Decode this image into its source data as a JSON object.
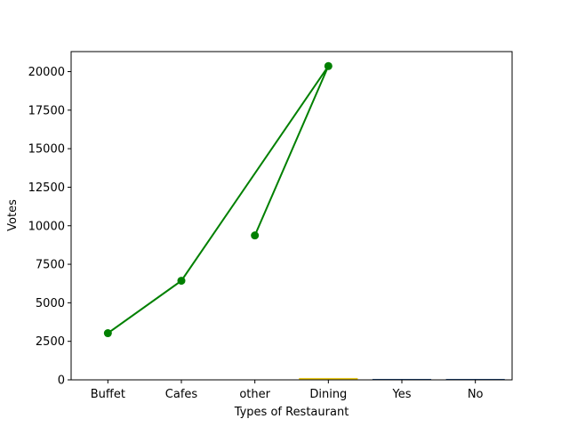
{
  "chart_data": {
    "type": "line",
    "categories": [
      "Buffet",
      "Cafes",
      "other",
      "Dining",
      "Yes",
      "No"
    ],
    "xlabel": "Types of Restaurant",
    "ylabel": "Votes",
    "ylim": [
      0,
      21300
    ],
    "yticks": [
      0,
      2500,
      5000,
      7500,
      10000,
      12500,
      15000,
      17500,
      20000
    ],
    "ytick_labels": [
      "0",
      "2500",
      "5000",
      "7500",
      "10000",
      "12500",
      "15000",
      "17500",
      "20000"
    ],
    "line_series": {
      "color": "#008000",
      "points": [
        {
          "category": "Buffet",
          "value": 3030
        },
        {
          "category": "Cafes",
          "value": 6430
        },
        {
          "category": "Dining",
          "value": 20360
        },
        {
          "category": "other",
          "value": 9370
        }
      ]
    },
    "bar_series": [
      {
        "color": "#e6c619",
        "values": [
          0,
          0,
          0,
          120,
          0,
          0
        ]
      },
      {
        "color": "#1f4e8c",
        "values": [
          0,
          0,
          0,
          0,
          60,
          60
        ]
      }
    ]
  }
}
